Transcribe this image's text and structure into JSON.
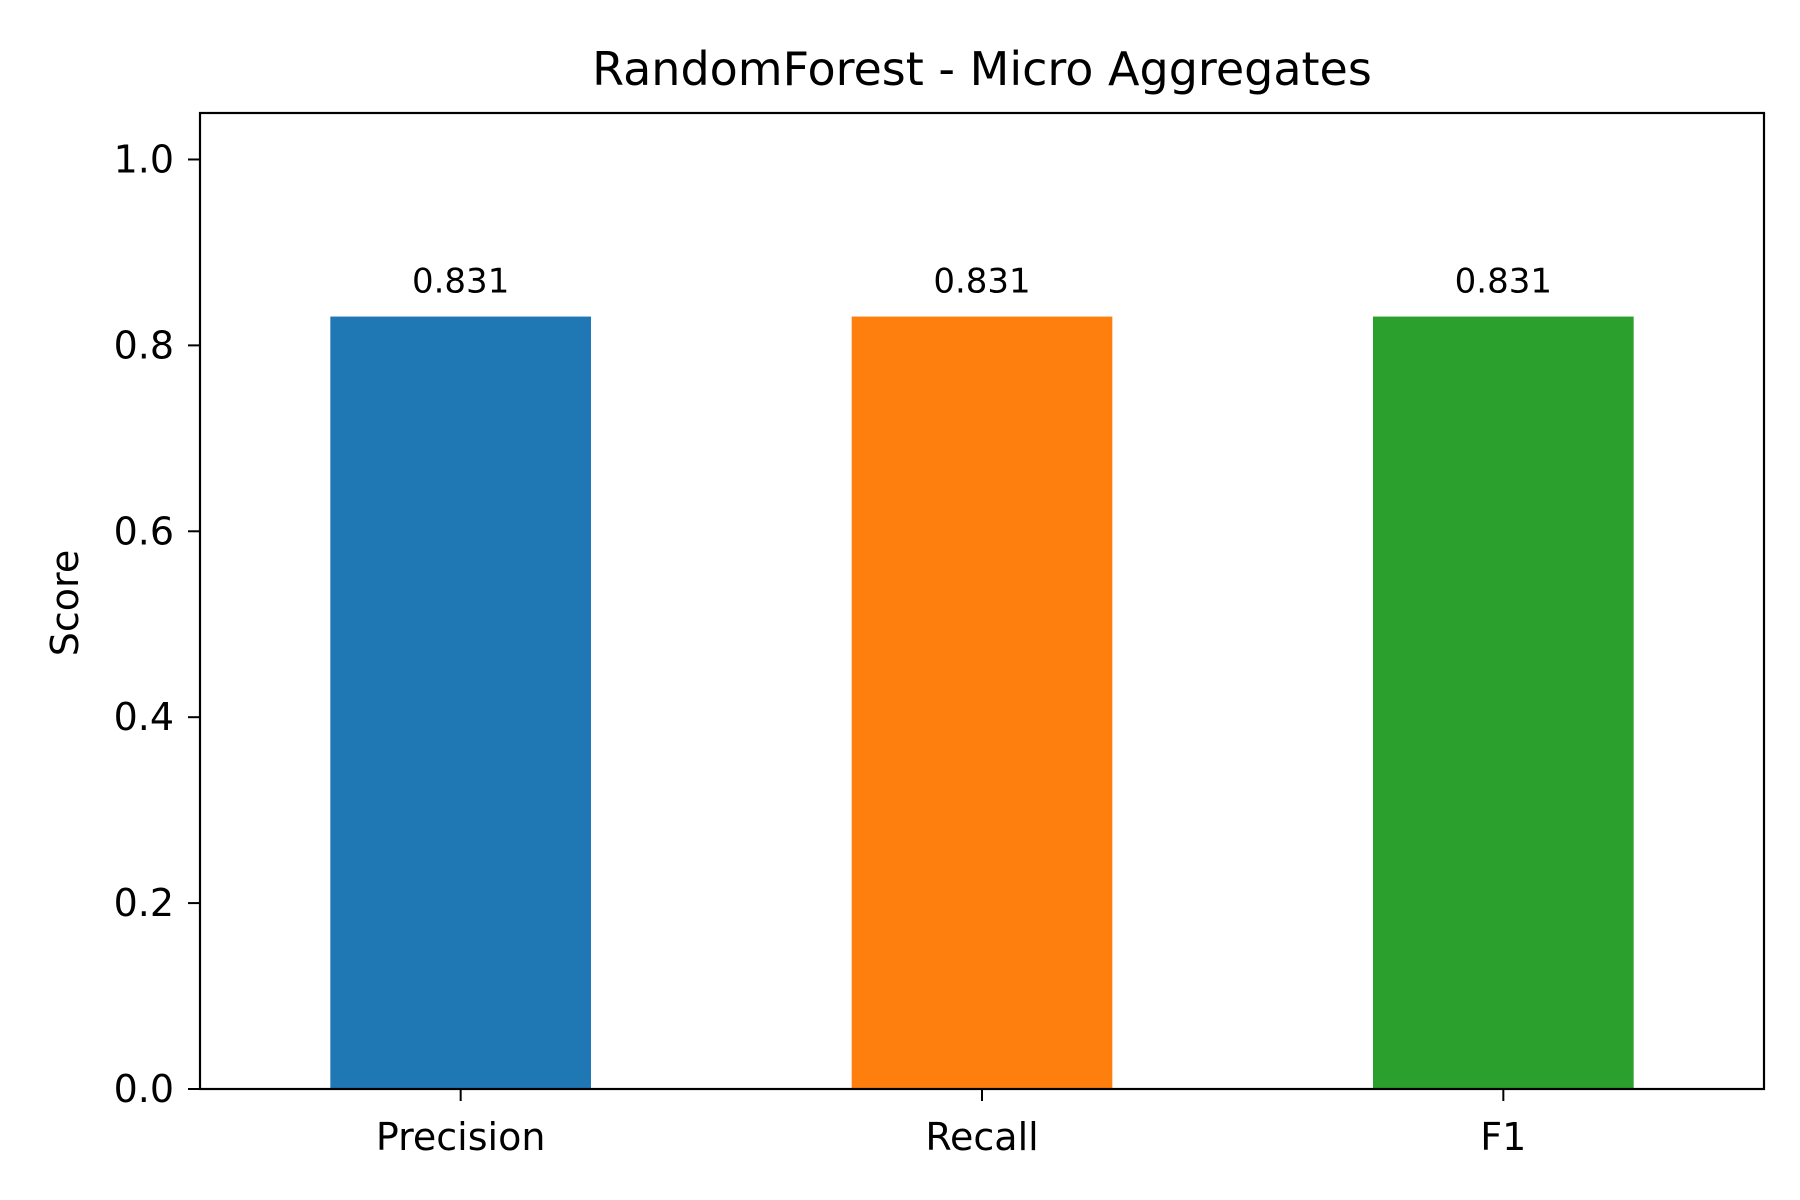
{
  "chart_data": {
    "type": "bar",
    "title": "RandomForest - Micro Aggregates",
    "xlabel": "",
    "ylabel": "Score",
    "categories": [
      "Precision",
      "Recall",
      "F1"
    ],
    "values": [
      0.831,
      0.831,
      0.831
    ],
    "data_labels": [
      "0.831",
      "0.831",
      "0.831"
    ],
    "colors": [
      "#1f77b4",
      "#ff7f0e",
      "#2ca02c"
    ],
    "ylim": [
      0,
      1.05
    ],
    "yticks": [
      0.0,
      0.2,
      0.4,
      0.6,
      0.8,
      1.0
    ],
    "ytick_labels": [
      "0.0",
      "0.2",
      "0.4",
      "0.6",
      "0.8",
      "1.0"
    ],
    "grid": false,
    "legend": "none"
  }
}
